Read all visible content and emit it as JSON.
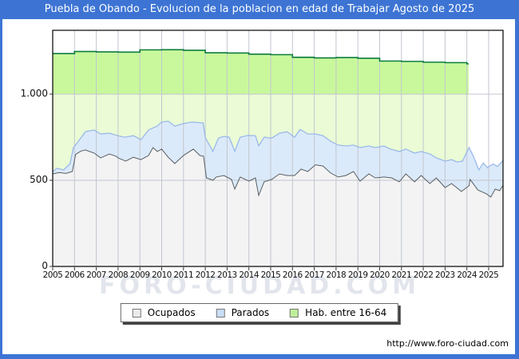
{
  "title": "Puebla de Obando - Evolucion de la poblacion en edad de Trabajar Agosto de 2025",
  "watermark": "FORO-CIUDAD.COM",
  "footer": {
    "url": "http://www.foro-ciudad.com"
  },
  "colors": {
    "frame": "#3d74d4",
    "title_text": "#ffffff",
    "plot_border": "#000000",
    "grid": "#c2c6cf",
    "tick": "#333333",
    "hab_line": "#0b7c3e",
    "hab_fill_above_1000": "#c9f89c",
    "hab_fill_below_1000": "#eafbd6",
    "parados_line": "#9bb9e9",
    "parados_fill": "#dbeafa",
    "ocupados_line": "#5a5f63",
    "ocupados_fill": "#f3f3f4",
    "watermark": "#cbd1dd"
  },
  "legend": {
    "items": [
      {
        "label": "Ocupados",
        "swatch": "#ebebeb"
      },
      {
        "label": "Parados",
        "swatch": "#c9ddf4"
      },
      {
        "label": "Hab. entre 16-64",
        "swatch": "#bfee9a"
      }
    ]
  },
  "chart_data": {
    "type": "area",
    "title": "Puebla de Obando - Evolucion de la poblacion en edad de Trabajar Agosto de 2025",
    "xlabel": "",
    "ylabel": "",
    "x_range": [
      2005,
      2025.67
    ],
    "ylim": [
      0,
      1370
    ],
    "grid": true,
    "legend_position": "bottom",
    "y_ticks": [
      {
        "value": 0,
        "label": "0"
      },
      {
        "value": 500,
        "label": "500"
      },
      {
        "value": 1000,
        "label": "1.000"
      }
    ],
    "x_tick_years": [
      2005,
      2006,
      2007,
      2008,
      2009,
      2010,
      2011,
      2012,
      2013,
      2014,
      2015,
      2016,
      2017,
      2018,
      2019,
      2020,
      2021,
      2022,
      2023,
      2024,
      2025
    ],
    "note": "Monthly series for Ocupados and Parados (blue band plotted above Ocupados); Hab. entre 16-64 is annual step data ending in 2024. Values estimated from gridlines.",
    "series": [
      {
        "name": "Hab. entre 16-64",
        "style": "step",
        "x_end": 2024.08,
        "x": [
          2005,
          2006,
          2007,
          2008,
          2009,
          2010,
          2011,
          2012,
          2013,
          2014,
          2015,
          2016,
          2017,
          2018,
          2019,
          2020,
          2021,
          2022,
          2023,
          2024
        ],
        "values": [
          1235,
          1247,
          1245,
          1244,
          1257,
          1258,
          1254,
          1240,
          1239,
          1232,
          1229,
          1214,
          1210,
          1212,
          1208,
          1192,
          1190,
          1185,
          1183,
          1176
        ]
      },
      {
        "name": "Parados",
        "style": "line",
        "x": [
          2005.0,
          2005.2,
          2005.5,
          2005.8,
          2005.95,
          2006.1,
          2006.5,
          2006.9,
          2007.2,
          2007.6,
          2008.0,
          2008.3,
          2008.7,
          2009.05,
          2009.4,
          2009.8,
          2010.0,
          2010.3,
          2010.6,
          2011.0,
          2011.4,
          2011.9,
          2012.0,
          2012.35,
          2012.6,
          2012.85,
          2013.1,
          2013.35,
          2013.6,
          2013.95,
          2014.3,
          2014.45,
          2014.7,
          2015.05,
          2015.4,
          2015.75,
          2016.1,
          2016.35,
          2016.7,
          2017.05,
          2017.4,
          2017.75,
          2018.1,
          2018.45,
          2018.8,
          2019.1,
          2019.5,
          2019.8,
          2020.2,
          2020.5,
          2020.9,
          2021.2,
          2021.6,
          2021.9,
          2022.3,
          2022.6,
          2023.0,
          2023.3,
          2023.55,
          2023.8,
          2024.1,
          2024.3,
          2024.55,
          2024.75,
          2024.95,
          2025.2,
          2025.4,
          2025.67
        ],
        "values": [
          551,
          570,
          560,
          597,
          690,
          713,
          782,
          792,
          769,
          773,
          759,
          750,
          759,
          736,
          792,
          815,
          838,
          843,
          815,
          829,
          838,
          833,
          748,
          668,
          745,
          755,
          750,
          668,
          750,
          760,
          759,
          700,
          750,
          745,
          773,
          782,
          750,
          795,
          769,
          769,
          759,
          727,
          704,
          699,
          704,
          690,
          699,
          690,
          699,
          681,
          667,
          681,
          658,
          667,
          653,
          630,
          611,
          620,
          606,
          611,
          690,
          640,
          560,
          600,
          574,
          595,
          580,
          615
        ]
      },
      {
        "name": "Ocupados",
        "style": "line",
        "x": [
          2005.0,
          2005.3,
          2005.6,
          2005.9,
          2006.05,
          2006.3,
          2006.5,
          2006.9,
          2007.2,
          2007.6,
          2007.9,
          2008.0,
          2008.35,
          2008.7,
          2009.05,
          2009.4,
          2009.6,
          2009.8,
          2010.0,
          2010.3,
          2010.6,
          2011.0,
          2011.45,
          2011.75,
          2011.92,
          2012.05,
          2012.35,
          2012.5,
          2012.85,
          2013.2,
          2013.35,
          2013.6,
          2014.0,
          2014.3,
          2014.45,
          2014.7,
          2015.05,
          2015.4,
          2015.75,
          2016.1,
          2016.4,
          2016.7,
          2017.05,
          2017.4,
          2017.75,
          2018.1,
          2018.45,
          2018.8,
          2019.1,
          2019.5,
          2019.8,
          2020.2,
          2020.55,
          2020.9,
          2021.2,
          2021.6,
          2021.9,
          2022.3,
          2022.6,
          2023.0,
          2023.3,
          2023.75,
          2024.1,
          2024.15,
          2024.5,
          2024.9,
          2025.1,
          2025.3,
          2025.5,
          2025.67
        ],
        "values": [
          537,
          545,
          540,
          551,
          650,
          670,
          676,
          658,
          630,
          653,
          640,
          630,
          611,
          634,
          620,
          644,
          690,
          667,
          681,
          634,
          597,
          644,
          681,
          644,
          640,
          514,
          500,
          519,
          528,
          505,
          449,
          519,
          495,
          514,
          412,
          491,
          505,
          537,
          528,
          528,
          565,
          551,
          590,
          583,
          542,
          519,
          528,
          551,
          495,
          537,
          514,
          519,
          514,
          491,
          537,
          491,
          528,
          481,
          514,
          458,
          481,
          435,
          468,
          505,
          444,
          421,
          403,
          449,
          440,
          470
        ]
      }
    ]
  }
}
